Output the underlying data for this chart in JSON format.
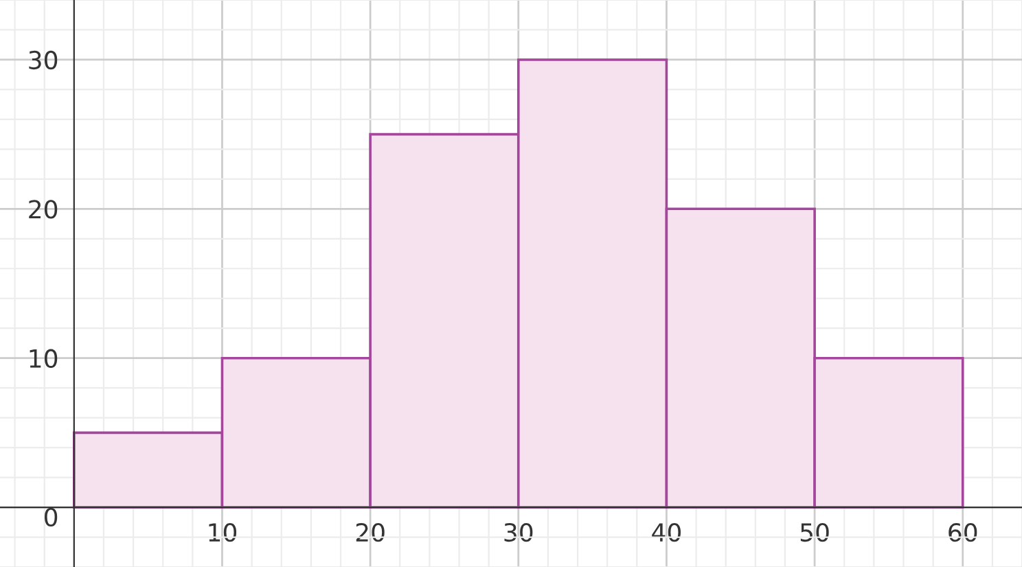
{
  "chart_data": {
    "type": "histogram",
    "bins": [
      0,
      10,
      20,
      30,
      40,
      50,
      60
    ],
    "values": [
      5,
      10,
      25,
      30,
      20,
      10
    ],
    "color": "#f6e2ef",
    "xlim": [
      -5,
      64
    ],
    "ylim": [
      -4,
      34
    ],
    "xticks": [
      10,
      20,
      30,
      40,
      50,
      60
    ],
    "yticks": [
      0,
      10,
      20,
      30
    ],
    "grid": true
  }
}
